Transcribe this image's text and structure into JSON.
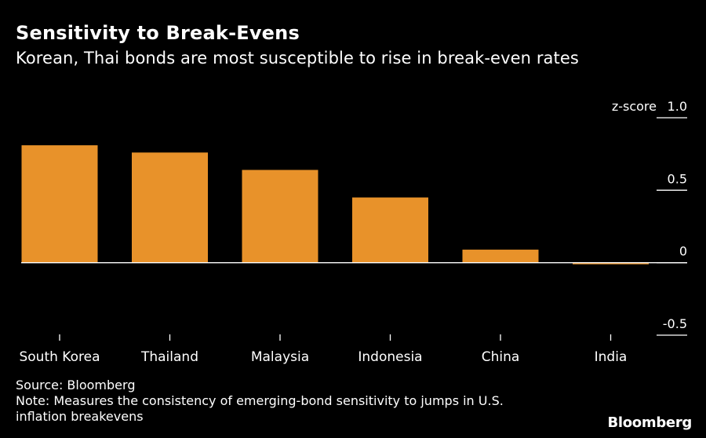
{
  "title": "Sensitivity to Break-Evens",
  "subtitle": "Korean, Thai bonds are most susceptible to rise in break-even rates",
  "chart_data": {
    "type": "bar",
    "categories": [
      "South Korea",
      "Thailand",
      "Malaysia",
      "Indonesia",
      "China",
      "India"
    ],
    "values": [
      0.81,
      0.76,
      0.64,
      0.45,
      0.09,
      -0.01
    ],
    "ylabel": "z-score",
    "ylim": [
      -0.5,
      1.0
    ],
    "yticks": [
      1.0,
      0.5,
      0,
      -0.5
    ],
    "ytick_labels": [
      "1.0",
      "0.5",
      "0",
      "-0.5"
    ],
    "axis_position": "right",
    "grid": false,
    "bar_color": "#E8922A",
    "zero_line_color": "#ffffff"
  },
  "footer": {
    "source": "Source: Bloomberg",
    "note_line1": "Note: Measures the consistency of emerging-bond sensitivity to jumps in U.S.",
    "note_line2": "inflation breakevens"
  },
  "brand": "Bloomberg",
  "colors": {
    "background": "#000000",
    "text": "#ffffff",
    "bar": "#E8922A"
  }
}
